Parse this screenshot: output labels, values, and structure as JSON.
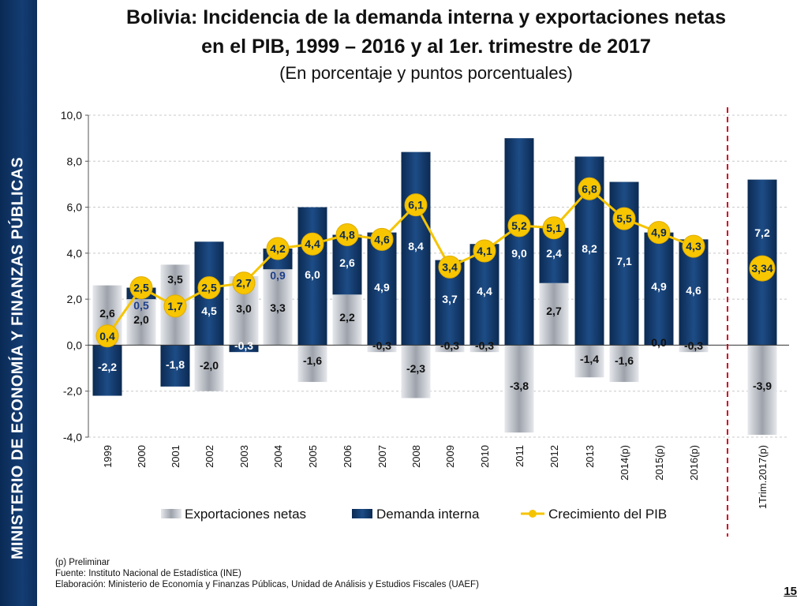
{
  "sidebar": {
    "label": "MINISTERIO DE ECONOMÍA Y FINANZAS PÚBLICAS"
  },
  "header": {
    "title_line1": "Bolivia: Incidencia de la demanda interna y exportaciones netas",
    "title_line2": "en el PIB, 1999 – 2016 y al 1er. trimestre de 2017",
    "subtitle": "(En porcentaje y puntos porcentuales)"
  },
  "chart_data": {
    "type": "bar",
    "stacked": true,
    "title": "Bolivia: Incidencia de la demanda interna y exportaciones netas en el PIB, 1999 – 2016 y al 1er. trimestre de 2017",
    "subtitle": "(En porcentaje y puntos porcentuales)",
    "categories": [
      "1999",
      "2000",
      "2001",
      "2002",
      "2003",
      "2004",
      "2005",
      "2006",
      "2007",
      "2008",
      "2009",
      "2010",
      "2011",
      "2012",
      "2013",
      "2014(p)",
      "2015(p)",
      "2016(p)",
      "1Trim.2017(p)"
    ],
    "series": [
      {
        "name": "Exportaciones netas",
        "kind": "bar",
        "color": "#b8bcc4",
        "values": [
          2.6,
          2.0,
          3.5,
          -2.0,
          3.0,
          3.3,
          -1.6,
          2.2,
          -0.3,
          -2.3,
          -0.3,
          -0.3,
          -3.8,
          2.7,
          -1.4,
          -1.6,
          0.0,
          -0.3,
          -3.9
        ],
        "labels": [
          "2,6",
          "2,0",
          "3,5",
          "-2,0",
          "3,0",
          "3,3",
          "-1,6",
          "2,2",
          "-0,3",
          "-2,3",
          "-0,3",
          "-0,3",
          "-3,8",
          "2,7",
          "-1,4",
          "-1,6",
          "0,0",
          "-0,3",
          "-3,9"
        ]
      },
      {
        "name": "Demanda interna",
        "kind": "bar",
        "color": "#123a6b",
        "values": [
          -2.2,
          0.5,
          -1.8,
          4.5,
          -0.3,
          0.9,
          6.0,
          2.6,
          4.9,
          8.4,
          3.7,
          4.4,
          9.0,
          2.4,
          8.2,
          7.1,
          4.9,
          4.6,
          7.2
        ],
        "labels": [
          "-2,2",
          "0,5",
          "-1,8",
          "4,5",
          "-0,3",
          "0,9",
          "6,0",
          "2,6",
          "4,9",
          "8,4",
          "3,7",
          "4,4",
          "9,0",
          "2,4",
          "8,2",
          "7,1",
          "4,9",
          "4,6",
          "7,2"
        ]
      },
      {
        "name": "Crecimiento del PIB",
        "kind": "line",
        "color": "#f5c400",
        "values": [
          0.4,
          2.5,
          1.7,
          2.5,
          2.7,
          4.2,
          4.4,
          4.8,
          4.6,
          6.1,
          3.4,
          4.1,
          5.2,
          5.1,
          6.8,
          5.5,
          4.9,
          4.3,
          3.34
        ],
        "labels": [
          "0,4",
          "2,5",
          "1,7",
          "2,5",
          "2,7",
          "4,2",
          "4,4",
          "4,8",
          "4,6",
          "6,1",
          "3,4",
          "4,1",
          "5,2",
          "5,1",
          "6,8",
          "5,5",
          "4,9",
          "4,3",
          "3,34"
        ]
      }
    ],
    "ylim": [
      -4.0,
      10.0
    ],
    "yticks": [
      -4.0,
      -2.0,
      0.0,
      2.0,
      4.0,
      6.0,
      8.0,
      10.0
    ],
    "ytick_labels": [
      "-4,0",
      "-2,0",
      "0,0",
      "2,0",
      "4,0",
      "6,0",
      "8,0",
      "10,0"
    ],
    "xlabel": "",
    "ylabel": "",
    "grid": true,
    "legend": "bottom",
    "separator": "dashed red vertical line before 1Trim.2017(p)"
  },
  "footer": {
    "note_preliminary": "(p) Preliminar",
    "source": "Fuente: Instituto Nacional de Estadística (INE)",
    "prepared_by": "Elaboración: Ministerio de Economía y Finanzas Públicas, Unidad de Análisis y Estudios Fiscales (UAEF)",
    "page_number": "15"
  }
}
